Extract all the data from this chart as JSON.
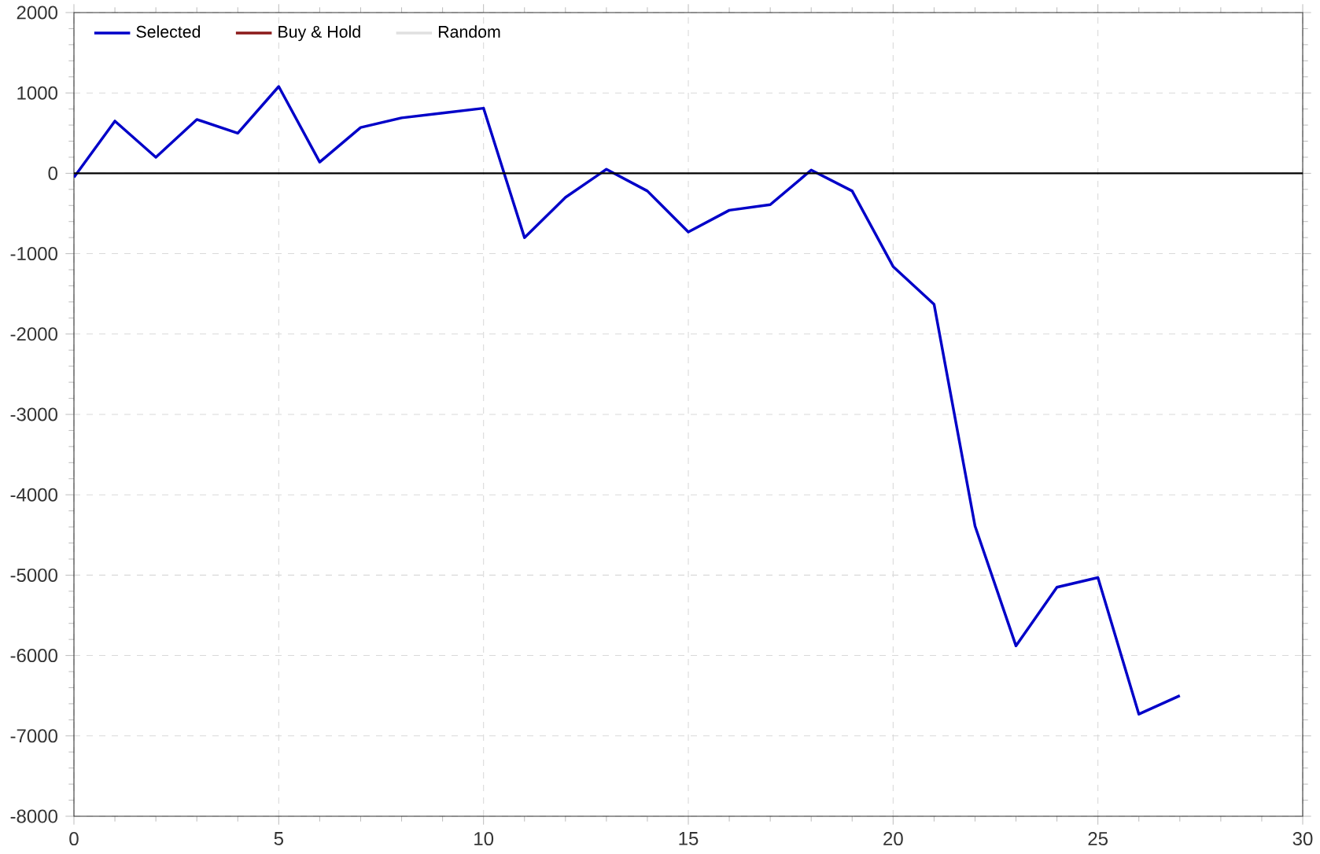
{
  "chart_data": {
    "type": "line",
    "x": [
      0,
      1,
      2,
      3,
      4,
      5,
      6,
      7,
      8,
      9,
      10,
      11,
      12,
      13,
      14,
      15,
      16,
      17,
      18,
      19,
      20,
      21,
      22,
      23,
      24,
      25,
      26,
      27
    ],
    "series": [
      {
        "name": "Selected",
        "color": "#0000c8",
        "values": [
          -50,
          650,
          200,
          670,
          500,
          1080,
          140,
          570,
          690,
          750,
          810,
          -800,
          -300,
          50,
          -220,
          -730,
          -460,
          -390,
          40,
          -220,
          -1160,
          -1630,
          -4390,
          -5880,
          -5150,
          -5030,
          -6730,
          -6500
        ]
      },
      {
        "name": "Buy & Hold",
        "color": "#8b1a1a",
        "values": [
          null,
          null,
          null,
          null,
          null,
          null,
          null,
          null,
          null,
          null,
          null,
          null,
          null,
          null,
          null,
          null,
          null,
          null,
          null,
          null,
          null,
          null,
          null,
          null,
          null,
          null,
          null,
          null
        ]
      },
      {
        "name": "Random",
        "color": "#e0e0e0",
        "values": [
          null,
          null,
          null,
          null,
          null,
          null,
          null,
          null,
          null,
          null,
          null,
          null,
          null,
          null,
          null,
          null,
          null,
          null,
          null,
          null,
          null,
          null,
          null,
          null,
          null,
          null,
          null,
          null
        ]
      }
    ],
    "xlim": [
      0,
      30
    ],
    "xticks": [
      0,
      5,
      10,
      15,
      20,
      25,
      30
    ],
    "ylim": [
      -8000,
      2000
    ],
    "yticks": [
      -8000,
      -7000,
      -6000,
      -5000,
      -4000,
      -3000,
      -2000,
      -1000,
      0,
      1000,
      2000
    ],
    "ref_lines": [
      {
        "axis": "y",
        "value": 0,
        "color": "#000000"
      }
    ],
    "grid": true,
    "legend": "top left",
    "marker": "none",
    "line_style": "solid"
  }
}
